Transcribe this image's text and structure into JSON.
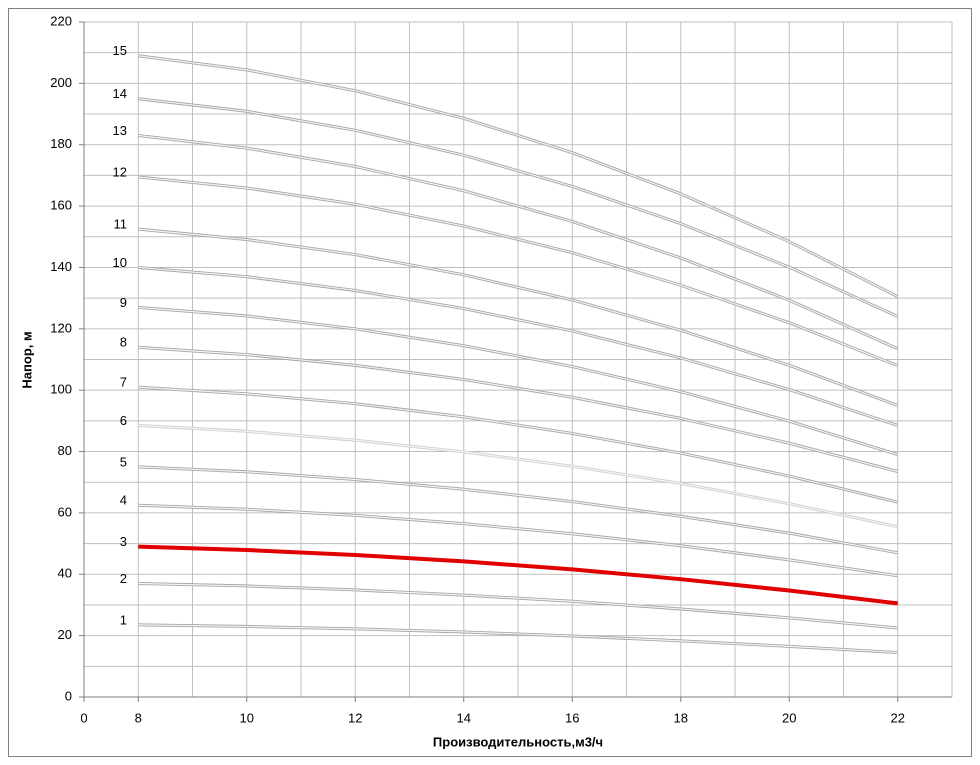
{
  "chart_data": {
    "type": "line",
    "x_label": "Производительность,м3/ч",
    "y_label": "Напор, м",
    "x": [
      8,
      10,
      12,
      14,
      16,
      18,
      20,
      22
    ],
    "xlim": [
      7,
      23
    ],
    "xticks": [
      {
        "value": 7,
        "label": "0"
      },
      8,
      10,
      12,
      14,
      16,
      18,
      20,
      22
    ],
    "ylim": [
      0,
      220
    ],
    "yticks": [
      0,
      20,
      40,
      60,
      80,
      100,
      120,
      140,
      160,
      180,
      200,
      220
    ],
    "grid": true,
    "series": [
      {
        "name": "1",
        "color": "#a6a6a6",
        "values": [
          23.5,
          23,
          22.2,
          21.2,
          19.9,
          18.3,
          16.5,
          14.5
        ]
      },
      {
        "name": "2",
        "color": "#a6a6a6",
        "values": [
          37,
          36.2,
          34.9,
          33.2,
          31.2,
          28.7,
          25.8,
          22.5
        ]
      },
      {
        "name": "3",
        "color": "#e00000",
        "values": [
          49,
          47.9,
          46.3,
          44.2,
          41.6,
          38.4,
          34.7,
          30.5
        ]
      },
      {
        "name": "4",
        "color": "#a6a6a6",
        "values": [
          62.5,
          61.2,
          59.2,
          56.5,
          53.2,
          49.3,
          44.7,
          39.5
        ]
      },
      {
        "name": "5",
        "color": "#a6a6a6",
        "values": [
          75,
          73.4,
          70.9,
          67.7,
          63.7,
          58.9,
          53.4,
          47
        ]
      },
      {
        "name": "6",
        "color": "#d0d0d0",
        "values": [
          88.5,
          86.6,
          83.7,
          79.9,
          75.2,
          69.6,
          63,
          55.5
        ]
      },
      {
        "name": "7",
        "color": "#a6a6a6",
        "values": [
          101,
          98.8,
          95.6,
          91.3,
          85.9,
          79.5,
          72,
          63.5
        ]
      },
      {
        "name": "8",
        "color": "#a6a6a6",
        "values": [
          114,
          111.6,
          108.1,
          103.5,
          97.7,
          90.8,
          82.7,
          73.5
        ]
      },
      {
        "name": "9",
        "color": "#a6a6a6",
        "values": [
          127,
          124.2,
          120,
          114.5,
          107.7,
          99.5,
          89.9,
          79
        ]
      },
      {
        "name": "10",
        "color": "#a6a6a6",
        "values": [
          140,
          137,
          132.5,
          126.6,
          119.3,
          110.5,
          100.2,
          88.5
        ]
      },
      {
        "name": "11",
        "color": "#a6a6a6",
        "values": [
          152.5,
          149.1,
          144.2,
          137.6,
          129.4,
          119.5,
          108.1,
          95
        ]
      },
      {
        "name": "12",
        "color": "#a6a6a6",
        "values": [
          169.5,
          165.9,
          160.6,
          153.5,
          144.8,
          134.2,
          122,
          108
        ]
      },
      {
        "name": "13",
        "color": "#a6a6a6",
        "values": [
          183,
          178.9,
          172.9,
          165,
          155,
          143.1,
          129.3,
          113.5
        ]
      },
      {
        "name": "14",
        "color": "#a6a6a6",
        "values": [
          195,
          190.9,
          184.7,
          176.6,
          166.4,
          154.3,
          140.1,
          124
        ]
      },
      {
        "name": "15",
        "color": "#a6a6a6",
        "values": [
          209,
          204.4,
          197.6,
          188.6,
          177.4,
          164,
          148.4,
          130.5
        ]
      }
    ]
  }
}
